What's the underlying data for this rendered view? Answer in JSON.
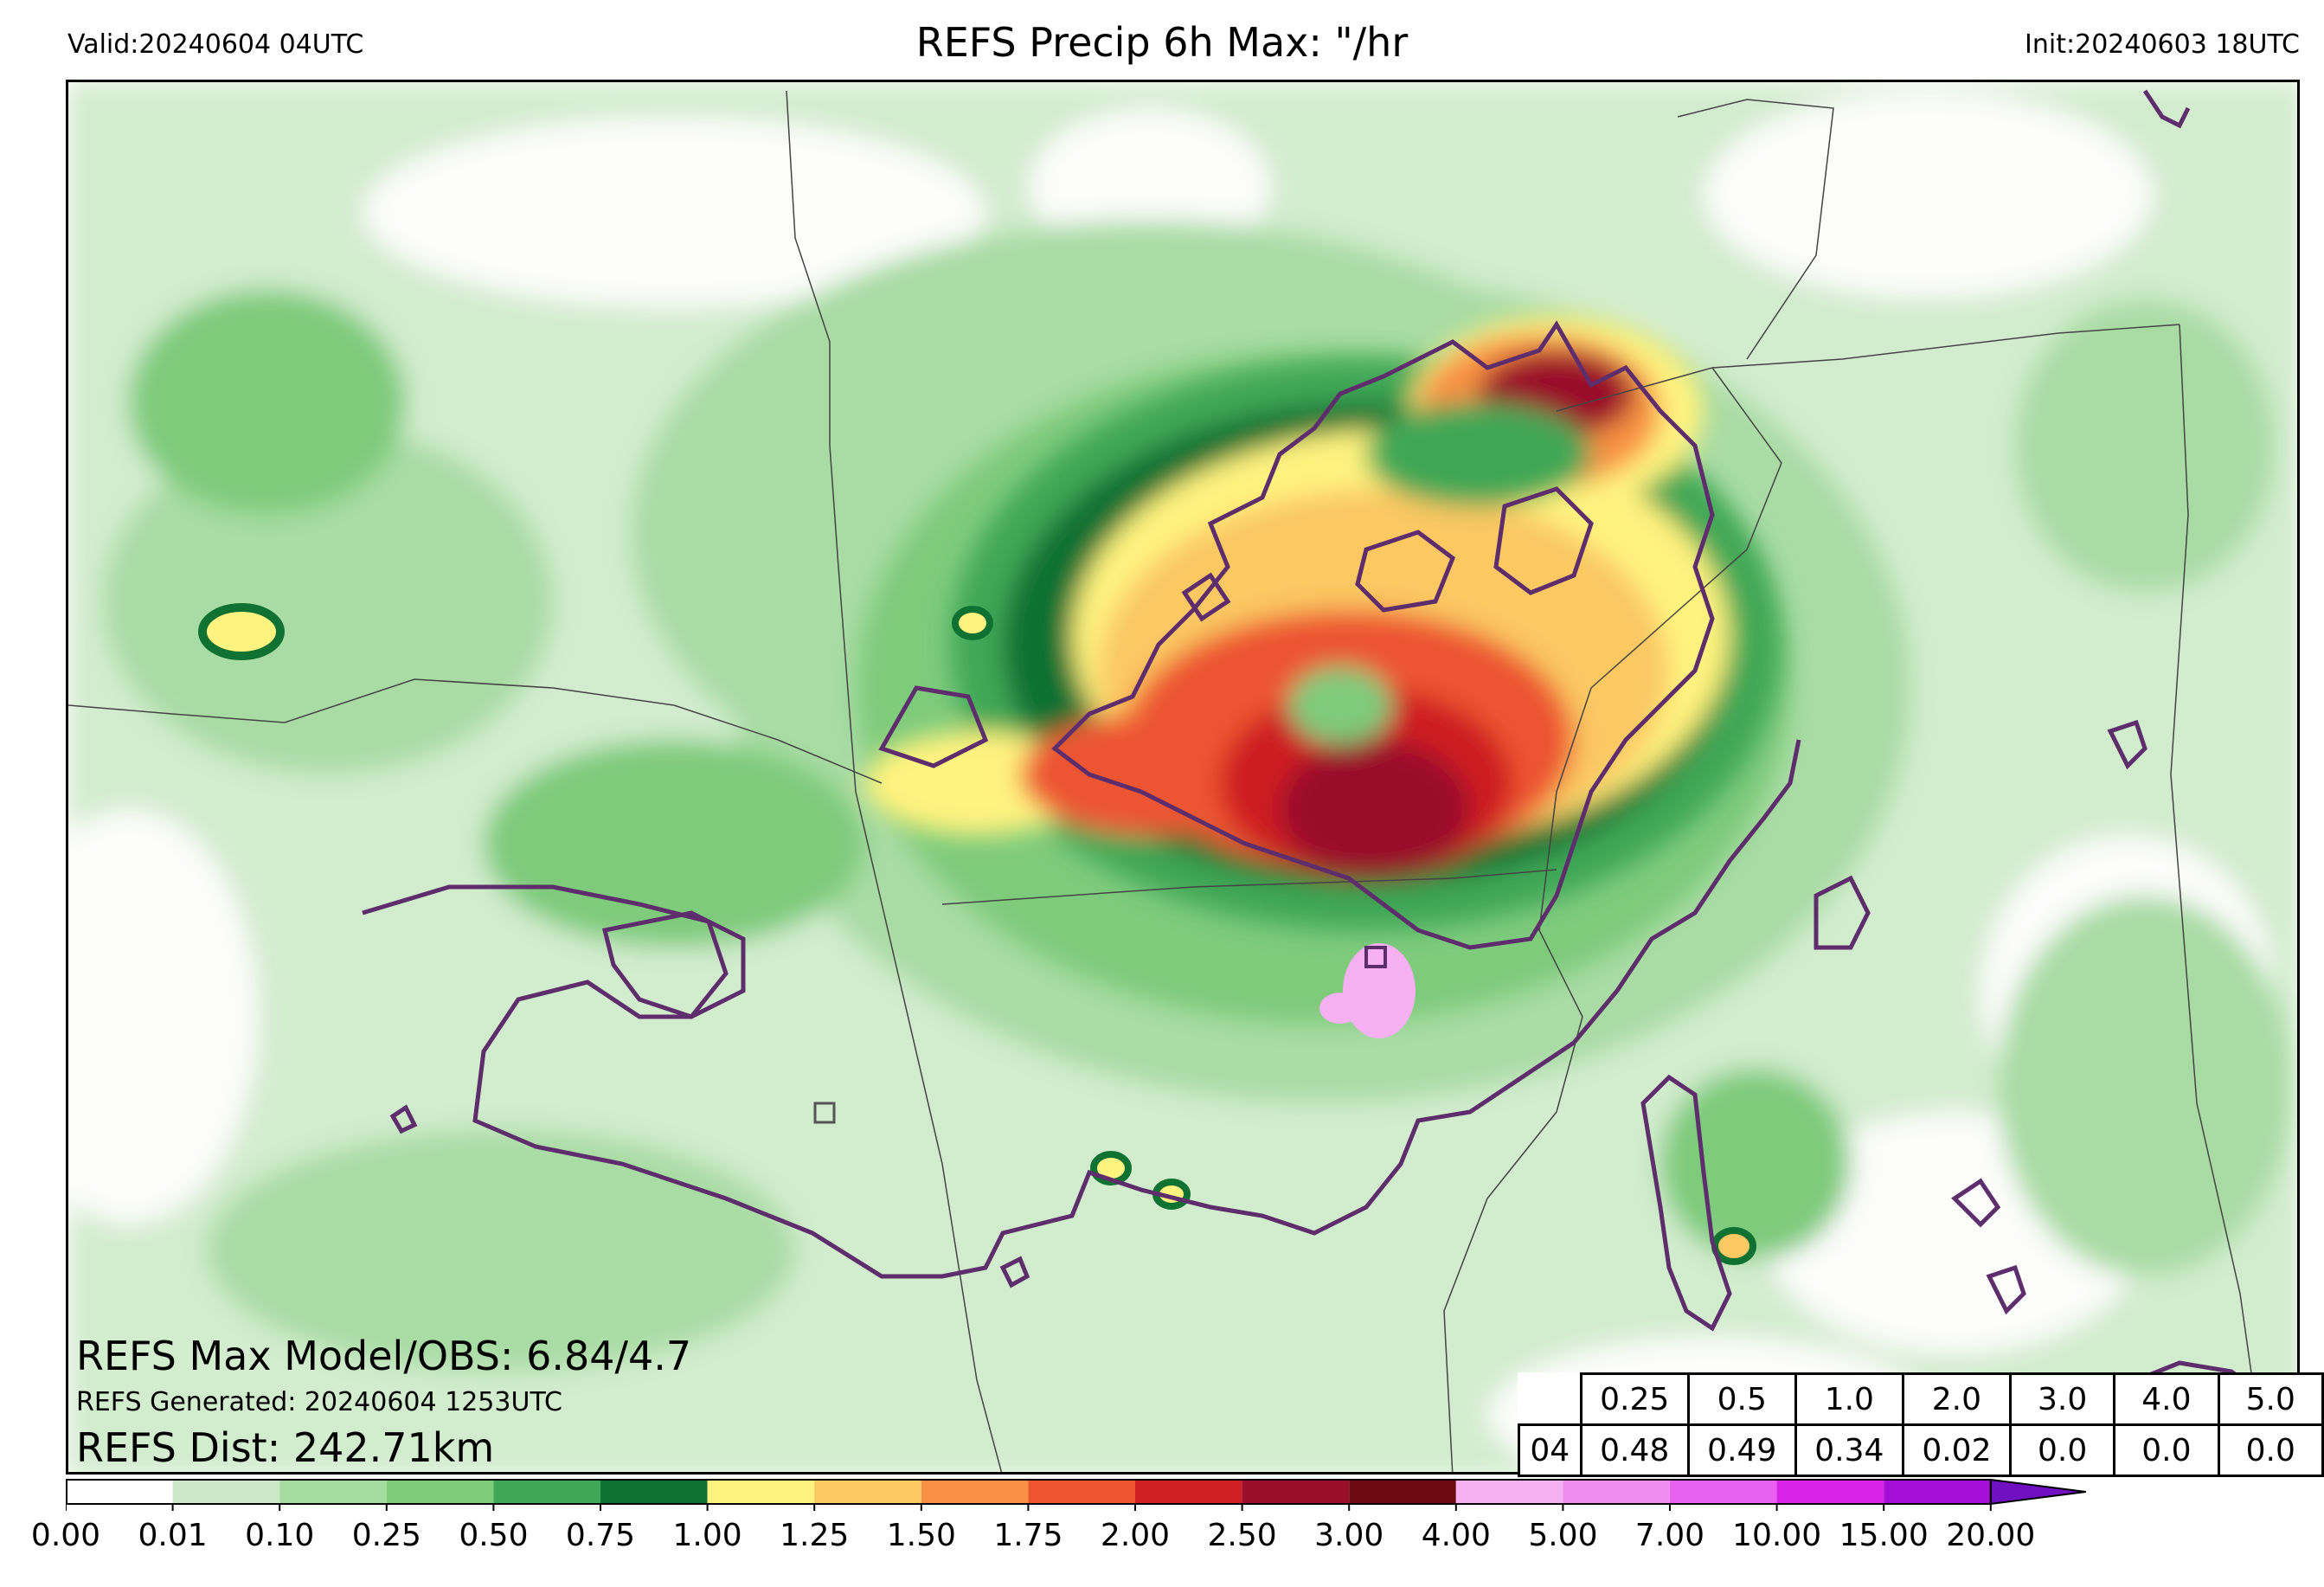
{
  "header": {
    "valid": "Valid:20240604 04UTC",
    "title": "REFS Precip 6h Max: \"/hr",
    "init": "Init:20240603 18UTC"
  },
  "annotations": {
    "max_model_obs": "REFS Max Model/OBS: 6.84/4.7",
    "generated": "REFS Generated: 20240604 1253UTC",
    "distance": "REFS Dist: 242.71km"
  },
  "stats_table": {
    "thresholds": [
      "0.25",
      "0.5",
      "1.0",
      "2.0",
      "3.0",
      "4.0",
      "5.0"
    ],
    "hour": "04",
    "values": [
      "0.48",
      "0.49",
      "0.34",
      "0.02",
      "0.0",
      "0.0",
      "0.0"
    ]
  },
  "colorbar": {
    "ticks": [
      "0.00",
      "0.01",
      "0.10",
      "0.25",
      "0.50",
      "0.75",
      "1.00",
      "1.25",
      "1.50",
      "1.75",
      "2.00",
      "2.50",
      "3.00",
      "4.00",
      "5.00",
      "7.00",
      "10.00",
      "15.00",
      "20.00"
    ],
    "colors": [
      "#ffffff",
      "#cbe8c6",
      "#a5dca0",
      "#7ecb7c",
      "#3fa757",
      "#0f7132",
      "#fff37f",
      "#fbc862",
      "#f89143",
      "#ed5531",
      "#cd1f24",
      "#9a0d2b",
      "#6e0b12",
      "#f7b1f3",
      "#f08ef0",
      "#e860ee",
      "#d724e8",
      "#a60fd6",
      "#7010c0"
    ]
  },
  "map": {
    "outline_color": "#5e2d6c",
    "max_box_label": "",
    "obs_box_label": ""
  }
}
